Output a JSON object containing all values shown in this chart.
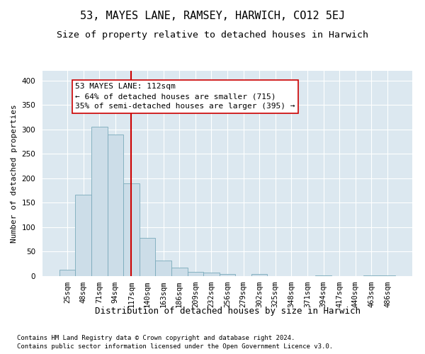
{
  "title": "53, MAYES LANE, RAMSEY, HARWICH, CO12 5EJ",
  "subtitle": "Size of property relative to detached houses in Harwich",
  "xlabel": "Distribution of detached houses by size in Harwich",
  "ylabel": "Number of detached properties",
  "footnote1": "Contains HM Land Registry data © Crown copyright and database right 2024.",
  "footnote2": "Contains public sector information licensed under the Open Government Licence v3.0.",
  "categories": [
    "25sqm",
    "48sqm",
    "71sqm",
    "94sqm",
    "117sqm",
    "140sqm",
    "163sqm",
    "186sqm",
    "209sqm",
    "232sqm",
    "256sqm",
    "279sqm",
    "302sqm",
    "325sqm",
    "348sqm",
    "371sqm",
    "394sqm",
    "417sqm",
    "440sqm",
    "463sqm",
    "486sqm"
  ],
  "values": [
    13,
    166,
    305,
    289,
    190,
    78,
    32,
    17,
    8,
    7,
    5,
    0,
    4,
    0,
    0,
    0,
    2,
    0,
    0,
    2,
    2
  ],
  "bar_color": "#ccdde8",
  "bar_edge_color": "#7aaabb",
  "vline_x": 4.0,
  "vline_color": "#cc0000",
  "annotation_text": "53 MAYES LANE: 112sqm\n← 64% of detached houses are smaller (715)\n35% of semi-detached houses are larger (395) →",
  "annotation_box_facecolor": "#ffffff",
  "annotation_box_edgecolor": "#cc0000",
  "ylim": [
    0,
    420
  ],
  "yticks": [
    0,
    50,
    100,
    150,
    200,
    250,
    300,
    350,
    400
  ],
  "background_color": "#dce8f0",
  "grid_color": "#ffffff",
  "title_fontsize": 11,
  "subtitle_fontsize": 9.5,
  "xlabel_fontsize": 9,
  "ylabel_fontsize": 8,
  "tick_fontsize": 7.5,
  "annotation_fontsize": 8,
  "footnote_fontsize": 6.5
}
